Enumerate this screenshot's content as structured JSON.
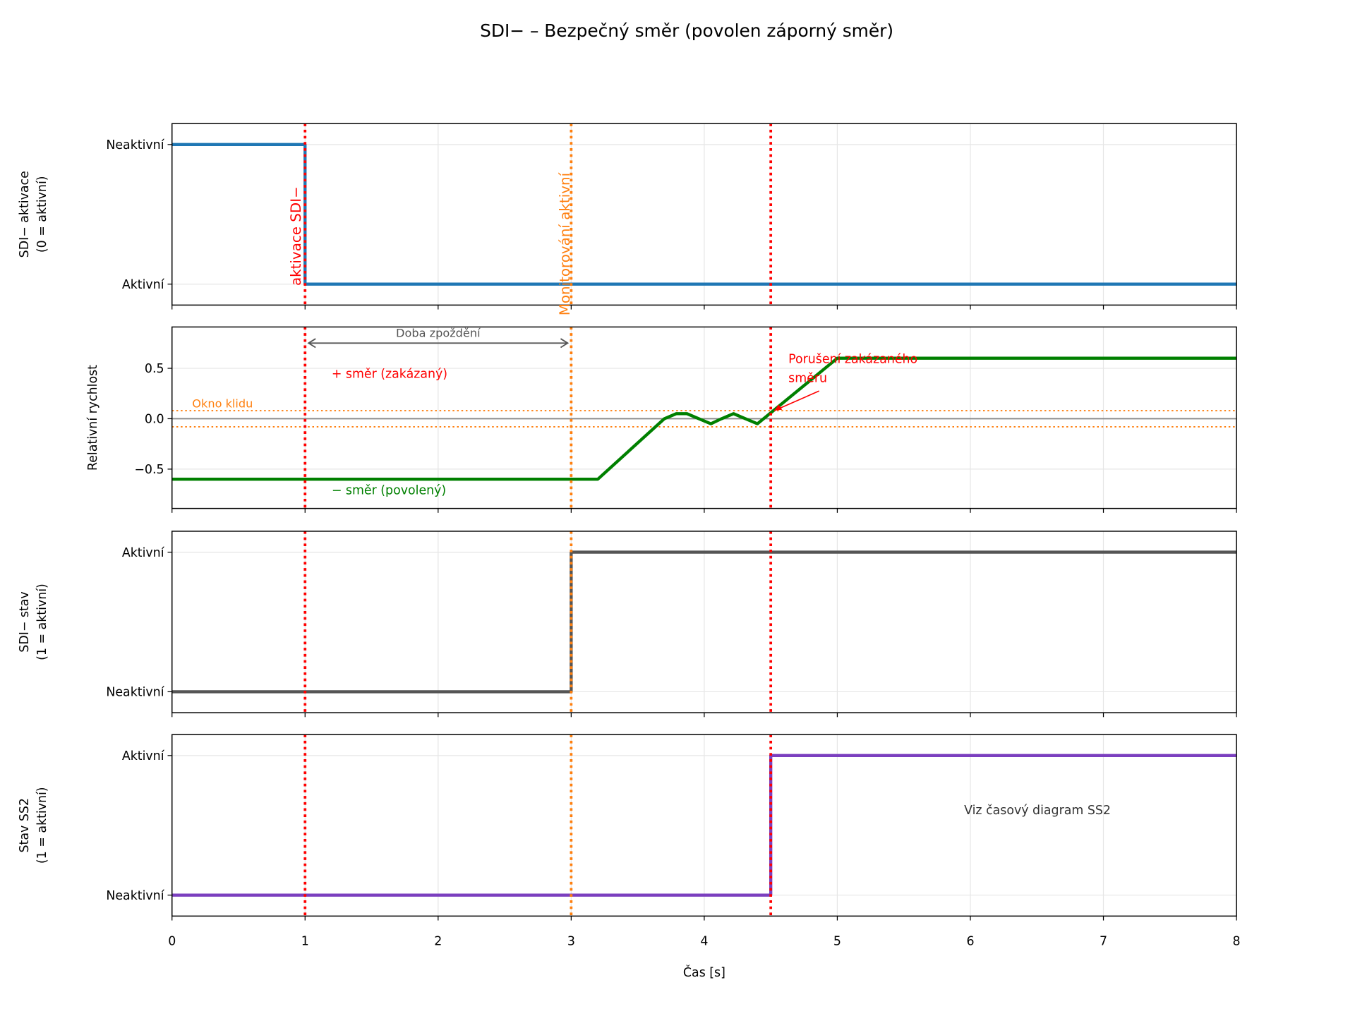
{
  "chart_data": {
    "type": "line",
    "title": "SDI− – Bezpečný směr (povolen záporný směr)",
    "xlabel": "Čas [s]",
    "xlim": [
      0,
      8
    ],
    "xticks": [
      "0",
      "1",
      "2",
      "3",
      "4",
      "5",
      "6",
      "7",
      "8"
    ],
    "grid": true,
    "vlines": [
      {
        "x": 1,
        "color": "#ff0000",
        "label": "aktivace SDI−"
      },
      {
        "x": 3,
        "color": "#ff7f0e",
        "label": "Monitorování aktivní"
      },
      {
        "x": 4.5,
        "color": "#ff0000",
        "label": ""
      }
    ],
    "panels": [
      {
        "ylabel": [
          "SDI− aktivace",
          "(0 = aktivní)"
        ],
        "ylim": [
          -0.15,
          1.15
        ],
        "yticks": [
          {
            "v": 1,
            "label": "Neaktivní"
          },
          {
            "v": 0,
            "label": "Aktivní"
          }
        ],
        "series": [
          {
            "name": "SDI- aktivace",
            "color": "#1f77b4",
            "step": true,
            "x": [
              0,
              1,
              1,
              8
            ],
            "y": [
              1,
              1,
              0,
              0
            ]
          }
        ]
      },
      {
        "ylabel": [
          "Relativní rychlost"
        ],
        "ylim": [
          -0.89,
          0.91
        ],
        "yticks": [
          {
            "v": 0.5,
            "label": "0.5"
          },
          {
            "v": 0,
            "label": "0.0"
          },
          {
            "v": -0.5,
            "label": "−0.5"
          }
        ],
        "series": [
          {
            "name": "rychlost",
            "color": "#008000",
            "x": [
              0,
              3.2,
              3.7,
              3.79,
              3.87,
              3.96,
              4.05,
              4.13,
              4.22,
              4.31,
              4.4,
              5.0,
              8
            ],
            "y": [
              -0.6,
              -0.6,
              0.0,
              0.05,
              0.05,
              0.0,
              -0.05,
              0.0,
              0.05,
              0.0,
              -0.05,
              0.6,
              0.6
            ]
          }
        ],
        "zero_line_color": "#888888",
        "window": {
          "limit": 0.08,
          "color": "#ff7f0e",
          "label": "Okno klidu"
        },
        "annotations": {
          "delay_label": "Doba zpoždění",
          "delay_from": 1,
          "delay_to": 3,
          "delay_y": 0.75,
          "plus_dir": "+ směr (zakázaný)",
          "minus_dir": "− směr (povolený)",
          "violation": [
            "Porušení zakázaného",
            "směru"
          ],
          "violation_point": [
            4.5,
            0.08
          ]
        }
      },
      {
        "ylabel": [
          "SDI− stav",
          "(1 = aktivní)"
        ],
        "ylim": [
          -0.15,
          1.15
        ],
        "yticks": [
          {
            "v": 1,
            "label": "Aktivní"
          },
          {
            "v": 0,
            "label": "Neaktivní"
          }
        ],
        "series": [
          {
            "name": "SDI- stav",
            "color": "#555555",
            "x": [
              0,
              3,
              3,
              8
            ],
            "y": [
              0,
              0,
              1,
              1
            ]
          }
        ]
      },
      {
        "ylabel": [
          "Stav SS2",
          "(1 = aktivní)"
        ],
        "ylim": [
          -0.15,
          1.15
        ],
        "yticks": [
          {
            "v": 1,
            "label": "Aktivní"
          },
          {
            "v": 0,
            "label": "Neaktivní"
          }
        ],
        "series": [
          {
            "name": "SS2",
            "color": "#7b3fbf",
            "x": [
              0,
              4.5,
              4.5,
              8
            ],
            "y": [
              0,
              0,
              1,
              1
            ]
          }
        ],
        "note": "Viz časový diagram SS2"
      }
    ]
  }
}
